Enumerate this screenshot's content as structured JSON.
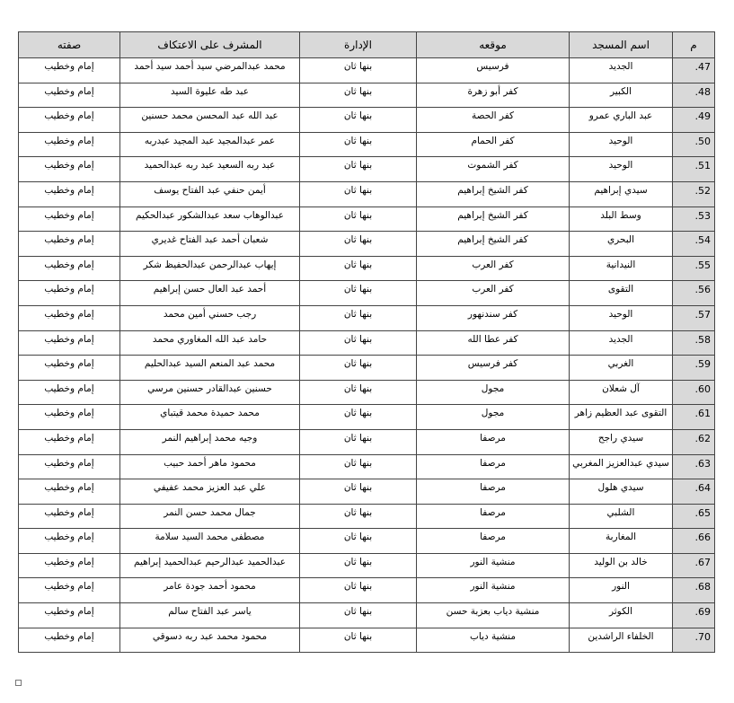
{
  "headers": {
    "num": "م",
    "mosque": "اسم المسجد",
    "location": "موقعه",
    "admin": "الإدارة",
    "supervisor": "المشرف على الاعتكاف",
    "role": "صفته"
  },
  "colors": {
    "header_bg": "#d9d9d9",
    "border": "#444444"
  },
  "rows": [
    {
      "num": ".47",
      "mosque": "الجديد",
      "location": "فرسيس",
      "admin": "بنها ثان",
      "supervisor": "محمد عبدالمرضي سيد أحمد سيد أحمد",
      "role": "إمام وخطيب"
    },
    {
      "num": ".48",
      "mosque": "الكبير",
      "location": "كفر أبو زهرة",
      "admin": "بنها ثان",
      "supervisor": "عبد طه عليوة السيد",
      "role": "إمام وخطيب"
    },
    {
      "num": ".49",
      "mosque": "عبد الباري عمرو",
      "location": "كفر الحصة",
      "admin": "بنها ثان",
      "supervisor": "عبد الله عبد المحسن محمد حسنين",
      "role": "إمام وخطيب"
    },
    {
      "num": ".50",
      "mosque": "الوحيد",
      "location": "كفر الحمام",
      "admin": "بنها ثان",
      "supervisor": "عمر عبدالمجيد عبد المجيد عبدربه",
      "role": "إمام وخطيب"
    },
    {
      "num": ".51",
      "mosque": "الوحيد",
      "location": "كفر الشموت",
      "admin": "بنها ثان",
      "supervisor": "عبد ربه السعيد عبد ربه عبدالحميد",
      "role": "إمام وخطيب"
    },
    {
      "num": ".52",
      "mosque": "سيدي إبراهيم",
      "location": "كفر الشيخ إبراهيم",
      "admin": "بنها ثان",
      "supervisor": "أيمن حنفي عبد الفتاح يوسف",
      "role": "إمام وخطيب"
    },
    {
      "num": ".53",
      "mosque": "وسط البلد",
      "location": "كفر الشيخ إبراهيم",
      "admin": "بنها ثان",
      "supervisor": "عبدالوهاب سعد عبدالشكور عبدالحكيم",
      "role": "إمام وخطيب"
    },
    {
      "num": ".54",
      "mosque": "البحري",
      "location": "كفر الشيخ إبراهيم",
      "admin": "بنها ثان",
      "supervisor": "شعبان أحمد عبد الفتاح غديري",
      "role": "إمام وخطيب"
    },
    {
      "num": ".55",
      "mosque": "النيدانية",
      "location": "كفر العرب",
      "admin": "بنها ثان",
      "supervisor": "إيهاب عبدالرحمن عبدالحفيظ شكر",
      "role": "إمام وخطيب"
    },
    {
      "num": ".56",
      "mosque": "التقوى",
      "location": "كفر العرب",
      "admin": "بنها ثان",
      "supervisor": "أحمد عبد العال حسن إبراهيم",
      "role": "إمام وخطيب"
    },
    {
      "num": ".57",
      "mosque": "الوحيد",
      "location": "كفر سندنهور",
      "admin": "بنها ثان",
      "supervisor": "رجب حسني أمين محمد",
      "role": "إمام وخطيب"
    },
    {
      "num": ".58",
      "mosque": "الجديد",
      "location": "كفر عطا الله",
      "admin": "بنها ثان",
      "supervisor": "حامد عبد الله المغاوري محمد",
      "role": "إمام وخطيب"
    },
    {
      "num": ".59",
      "mosque": "الغربي",
      "location": "كفر فرسيس",
      "admin": "بنها ثان",
      "supervisor": "محمد عبد المنعم السيد عبدالحليم",
      "role": "إمام وخطيب"
    },
    {
      "num": ".60",
      "mosque": "آل شعلان",
      "location": "مجول",
      "admin": "بنها ثان",
      "supervisor": "حسنين عبدالقادر حسنين مرسي",
      "role": "إمام وخطيب"
    },
    {
      "num": ".61",
      "mosque": "التقوى عبد العظيم زاهر",
      "location": "مجول",
      "admin": "بنها ثان",
      "supervisor": "محمد حميدة محمد قيتباي",
      "role": "إمام وخطيب"
    },
    {
      "num": ".62",
      "mosque": "سيدي راجح",
      "location": "مرصفا",
      "admin": "بنها ثان",
      "supervisor": "وجيه محمد إبراهيم النمر",
      "role": "إمام وخطيب"
    },
    {
      "num": ".63",
      "mosque": "سيدي عبدالعزيز المغربي",
      "location": "مرصفا",
      "admin": "بنها ثان",
      "supervisor": "محمود ماهر أحمد حبيب",
      "role": "إمام وخطيب"
    },
    {
      "num": ".64",
      "mosque": "سيدي هلول",
      "location": "مرصفا",
      "admin": "بنها ثان",
      "supervisor": "علي عبد العزيز محمد عفيفي",
      "role": "إمام وخطيب"
    },
    {
      "num": ".65",
      "mosque": "الشلبي",
      "location": "مرصفا",
      "admin": "بنها ثان",
      "supervisor": "جمال محمد حسن النمر",
      "role": "إمام وخطيب"
    },
    {
      "num": ".66",
      "mosque": "المغاربة",
      "location": "مرصفا",
      "admin": "بنها ثان",
      "supervisor": "مصطفى محمد السيد سلامة",
      "role": "إمام وخطيب"
    },
    {
      "num": ".67",
      "mosque": "خالد بن الوليد",
      "location": "منشية النور",
      "admin": "بنها ثان",
      "supervisor": "عبدالحميد عبدالرحيم عبدالحميد إبراهيم",
      "role": "إمام وخطيب"
    },
    {
      "num": ".68",
      "mosque": "النور",
      "location": "منشية النور",
      "admin": "بنها ثان",
      "supervisor": "محمود أحمد جودة عامر",
      "role": "إمام وخطيب"
    },
    {
      "num": ".69",
      "mosque": "الكوثر",
      "location": "منشية دياب بعزبة حسن",
      "admin": "بنها ثان",
      "supervisor": "ياسر عبد الفتاح سالم",
      "role": "إمام وخطيب"
    },
    {
      "num": ".70",
      "mosque": "الخلفاء الراشدين",
      "location": "منشية دياب",
      "admin": "بنها ثان",
      "supervisor": "محمود محمد عبد ربه دسوقي",
      "role": "إمام وخطيب"
    }
  ]
}
